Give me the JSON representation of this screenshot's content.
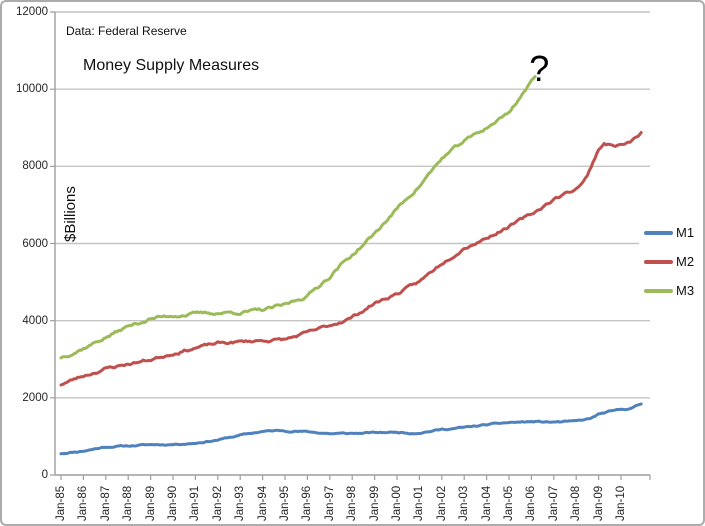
{
  "annotations": {
    "data_source": "Data: Federal Reserve",
    "question_mark": "?"
  },
  "chart_data": {
    "type": "line",
    "title": "Money Supply Measures",
    "xlabel": "",
    "ylabel": "$Billions",
    "ylim": [
      0,
      12000
    ],
    "y_ticks": [
      0,
      2000,
      4000,
      6000,
      8000,
      10000,
      12000
    ],
    "x_tick_labels": [
      "Jan-85",
      "Jan-86",
      "Jan-87",
      "Jan-88",
      "Jan-89",
      "Jan-90",
      "Jan-91",
      "Jan-92",
      "Jan-93",
      "Jan-94",
      "Jan-95",
      "Jan-96",
      "Jan-97",
      "Jan-98",
      "Jan-99",
      "Jan-00",
      "Jan-01",
      "Jan-02",
      "Jan-03",
      "Jan-04",
      "Jan-05",
      "Jan-06",
      "Jan-07",
      "Jan-08",
      "Jan-09",
      "Jan-10"
    ],
    "x_range_years": [
      1985.0,
      2011.5
    ],
    "grid": "horizontal",
    "legend_position": "right-outside",
    "annotation": {
      "text": "?",
      "x_year": 2006.35,
      "y_value": 10480
    },
    "colors": {
      "grid": "#c4c4c4",
      "axis": "#9e9e9e",
      "text": "#262626",
      "M1": "#4f81bd",
      "M2": "#c0504d",
      "M3": "#9bbb59"
    },
    "series": [
      {
        "name": "M1",
        "color": "#4f81bd",
        "points": [
          [
            1985.0,
            560
          ],
          [
            1986.0,
            625
          ],
          [
            1987.0,
            730
          ],
          [
            1988.0,
            755
          ],
          [
            1989.0,
            785
          ],
          [
            1990.0,
            795
          ],
          [
            1991.0,
            830
          ],
          [
            1992.0,
            910
          ],
          [
            1993.0,
            1030
          ],
          [
            1994.0,
            1130
          ],
          [
            1994.8,
            1150
          ],
          [
            1995.5,
            1140
          ],
          [
            1996.0,
            1120
          ],
          [
            1997.0,
            1075
          ],
          [
            1998.0,
            1075
          ],
          [
            1999.0,
            1095
          ],
          [
            2000.0,
            1110
          ],
          [
            2000.6,
            1090
          ],
          [
            2001.0,
            1100
          ],
          [
            2002.0,
            1180
          ],
          [
            2003.0,
            1230
          ],
          [
            2004.0,
            1300
          ],
          [
            2005.0,
            1360
          ],
          [
            2006.0,
            1380
          ],
          [
            2007.0,
            1370
          ],
          [
            2008.0,
            1390
          ],
          [
            2008.6,
            1450
          ],
          [
            2009.0,
            1570
          ],
          [
            2009.4,
            1630
          ],
          [
            2010.0,
            1690
          ],
          [
            2010.5,
            1740
          ],
          [
            2010.9,
            1840
          ]
        ]
      },
      {
        "name": "M2",
        "color": "#c0504d",
        "points": [
          [
            1985.0,
            2350
          ],
          [
            1986.0,
            2570
          ],
          [
            1987.0,
            2760
          ],
          [
            1988.0,
            2880
          ],
          [
            1989.0,
            2990
          ],
          [
            1990.0,
            3160
          ],
          [
            1991.0,
            3300
          ],
          [
            1992.0,
            3410
          ],
          [
            1993.0,
            3450
          ],
          [
            1994.0,
            3490
          ],
          [
            1995.0,
            3510
          ],
          [
            1996.0,
            3680
          ],
          [
            1997.0,
            3870
          ],
          [
            1998.0,
            4090
          ],
          [
            1999.0,
            4450
          ],
          [
            2000.0,
            4700
          ],
          [
            2001.0,
            5000
          ],
          [
            2002.0,
            5500
          ],
          [
            2003.0,
            5900
          ],
          [
            2004.0,
            6150
          ],
          [
            2005.0,
            6450
          ],
          [
            2006.0,
            6750
          ],
          [
            2007.0,
            7150
          ],
          [
            2008.0,
            7420
          ],
          [
            2008.5,
            7750
          ],
          [
            2009.0,
            8450
          ],
          [
            2009.25,
            8600
          ],
          [
            2009.6,
            8540
          ],
          [
            2010.0,
            8560
          ],
          [
            2010.4,
            8620
          ],
          [
            2010.9,
            8840
          ]
        ]
      },
      {
        "name": "M3",
        "color": "#9bbb59",
        "points": [
          [
            1985.0,
            3050
          ],
          [
            1986.0,
            3290
          ],
          [
            1987.0,
            3570
          ],
          [
            1988.0,
            3850
          ],
          [
            1989.0,
            4050
          ],
          [
            1990.0,
            4140
          ],
          [
            1991.0,
            4180
          ],
          [
            1992.0,
            4200
          ],
          [
            1993.0,
            4220
          ],
          [
            1994.0,
            4270
          ],
          [
            1995.0,
            4400
          ],
          [
            1996.0,
            4650
          ],
          [
            1997.0,
            5150
          ],
          [
            1997.5,
            5450
          ],
          [
            1998.0,
            5700
          ],
          [
            1999.0,
            6250
          ],
          [
            2000.0,
            6900
          ],
          [
            2001.0,
            7500
          ],
          [
            2002.0,
            8200
          ],
          [
            2003.0,
            8650
          ],
          [
            2004.0,
            9000
          ],
          [
            2005.0,
            9400
          ],
          [
            2006.0,
            10200
          ],
          [
            2006.17,
            10300
          ]
        ]
      }
    ]
  }
}
